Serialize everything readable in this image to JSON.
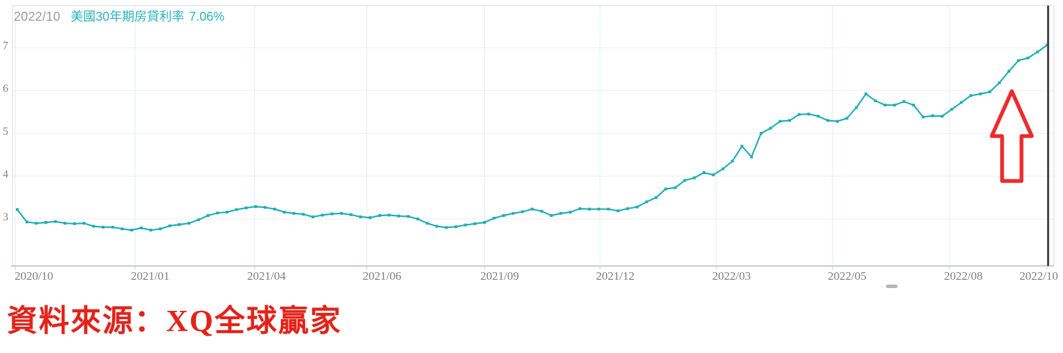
{
  "header": {
    "date_label": "2022/10",
    "series_title": "美國30年期房貸利率",
    "latest_value": "7.06%"
  },
  "source_caption": "資料來源：XQ全球贏家",
  "colors": {
    "line": "#1faeb5",
    "marker": "#1faeb5",
    "title_teal": "#2ab4bb",
    "header_gray": "#9a9a9a",
    "tick_label_gray": "#7d7d7d",
    "grid_vertical": "#ddeef5",
    "grid_horizontal": "#ececec",
    "plot_border": "#d9d9d9",
    "axis_line": "#b9b9b9",
    "tick_mark": "#c2ccd2",
    "cursor_line": "#474747",
    "annotation_red": "#ee2b2b",
    "caption_red": "#e3231a",
    "scroll_dash_gray": "#9e9e9e"
  },
  "chart_data": {
    "type": "line",
    "title": "美國30年期房貸利率",
    "unit": "%",
    "frequency": "weekly",
    "legend_position": "top-left-inline",
    "grid": true,
    "latest": {
      "date": "2022/10",
      "value": 7.06
    },
    "x_start": "2020/10",
    "x_end": "2022/10",
    "x_tick_labels": [
      "2020/10",
      "2021/01",
      "2021/04",
      "2021/06",
      "2021/09",
      "2021/12",
      "2022/03",
      "2022/05",
      "2022/08",
      "2022/10"
    ],
    "y_ticks": [
      7,
      6,
      5,
      4,
      3
    ],
    "ylim_displayed": [
      1.9,
      7.98
    ],
    "series": [
      {
        "name": "美國30年期房貸利率",
        "color": "#1faeb5",
        "values": [
          3.22,
          2.93,
          2.9,
          2.92,
          2.94,
          2.9,
          2.89,
          2.9,
          2.83,
          2.81,
          2.81,
          2.77,
          2.74,
          2.79,
          2.74,
          2.77,
          2.84,
          2.87,
          2.9,
          2.98,
          3.08,
          3.14,
          3.16,
          3.22,
          3.26,
          3.29,
          3.27,
          3.23,
          3.16,
          3.13,
          3.11,
          3.05,
          3.09,
          3.12,
          3.13,
          3.1,
          3.05,
          3.03,
          3.08,
          3.09,
          3.07,
          3.06,
          3.0,
          2.9,
          2.83,
          2.8,
          2.82,
          2.86,
          2.89,
          2.92,
          3.02,
          3.08,
          3.13,
          3.17,
          3.23,
          3.18,
          3.08,
          3.13,
          3.16,
          3.24,
          3.23,
          3.23,
          3.23,
          3.19,
          3.24,
          3.28,
          3.4,
          3.5,
          3.7,
          3.73,
          3.9,
          3.96,
          4.08,
          4.03,
          4.17,
          4.35,
          4.7,
          4.45,
          5.0,
          5.12,
          5.28,
          5.3,
          5.44,
          5.45,
          5.4,
          5.3,
          5.28,
          5.35,
          5.6,
          5.92,
          5.76,
          5.66,
          5.66,
          5.74,
          5.66,
          5.38,
          5.41,
          5.4,
          5.56,
          5.72,
          5.88,
          5.92,
          5.97,
          6.18,
          6.45,
          6.7,
          6.76,
          6.9,
          7.06
        ]
      }
    ],
    "annotations": [
      {
        "type": "up-arrow",
        "color": "#ee2b2b",
        "position": "above 2022/09 region"
      },
      {
        "type": "cursor-line",
        "color": "#474747",
        "position": "at latest data point 2022/10"
      }
    ]
  }
}
